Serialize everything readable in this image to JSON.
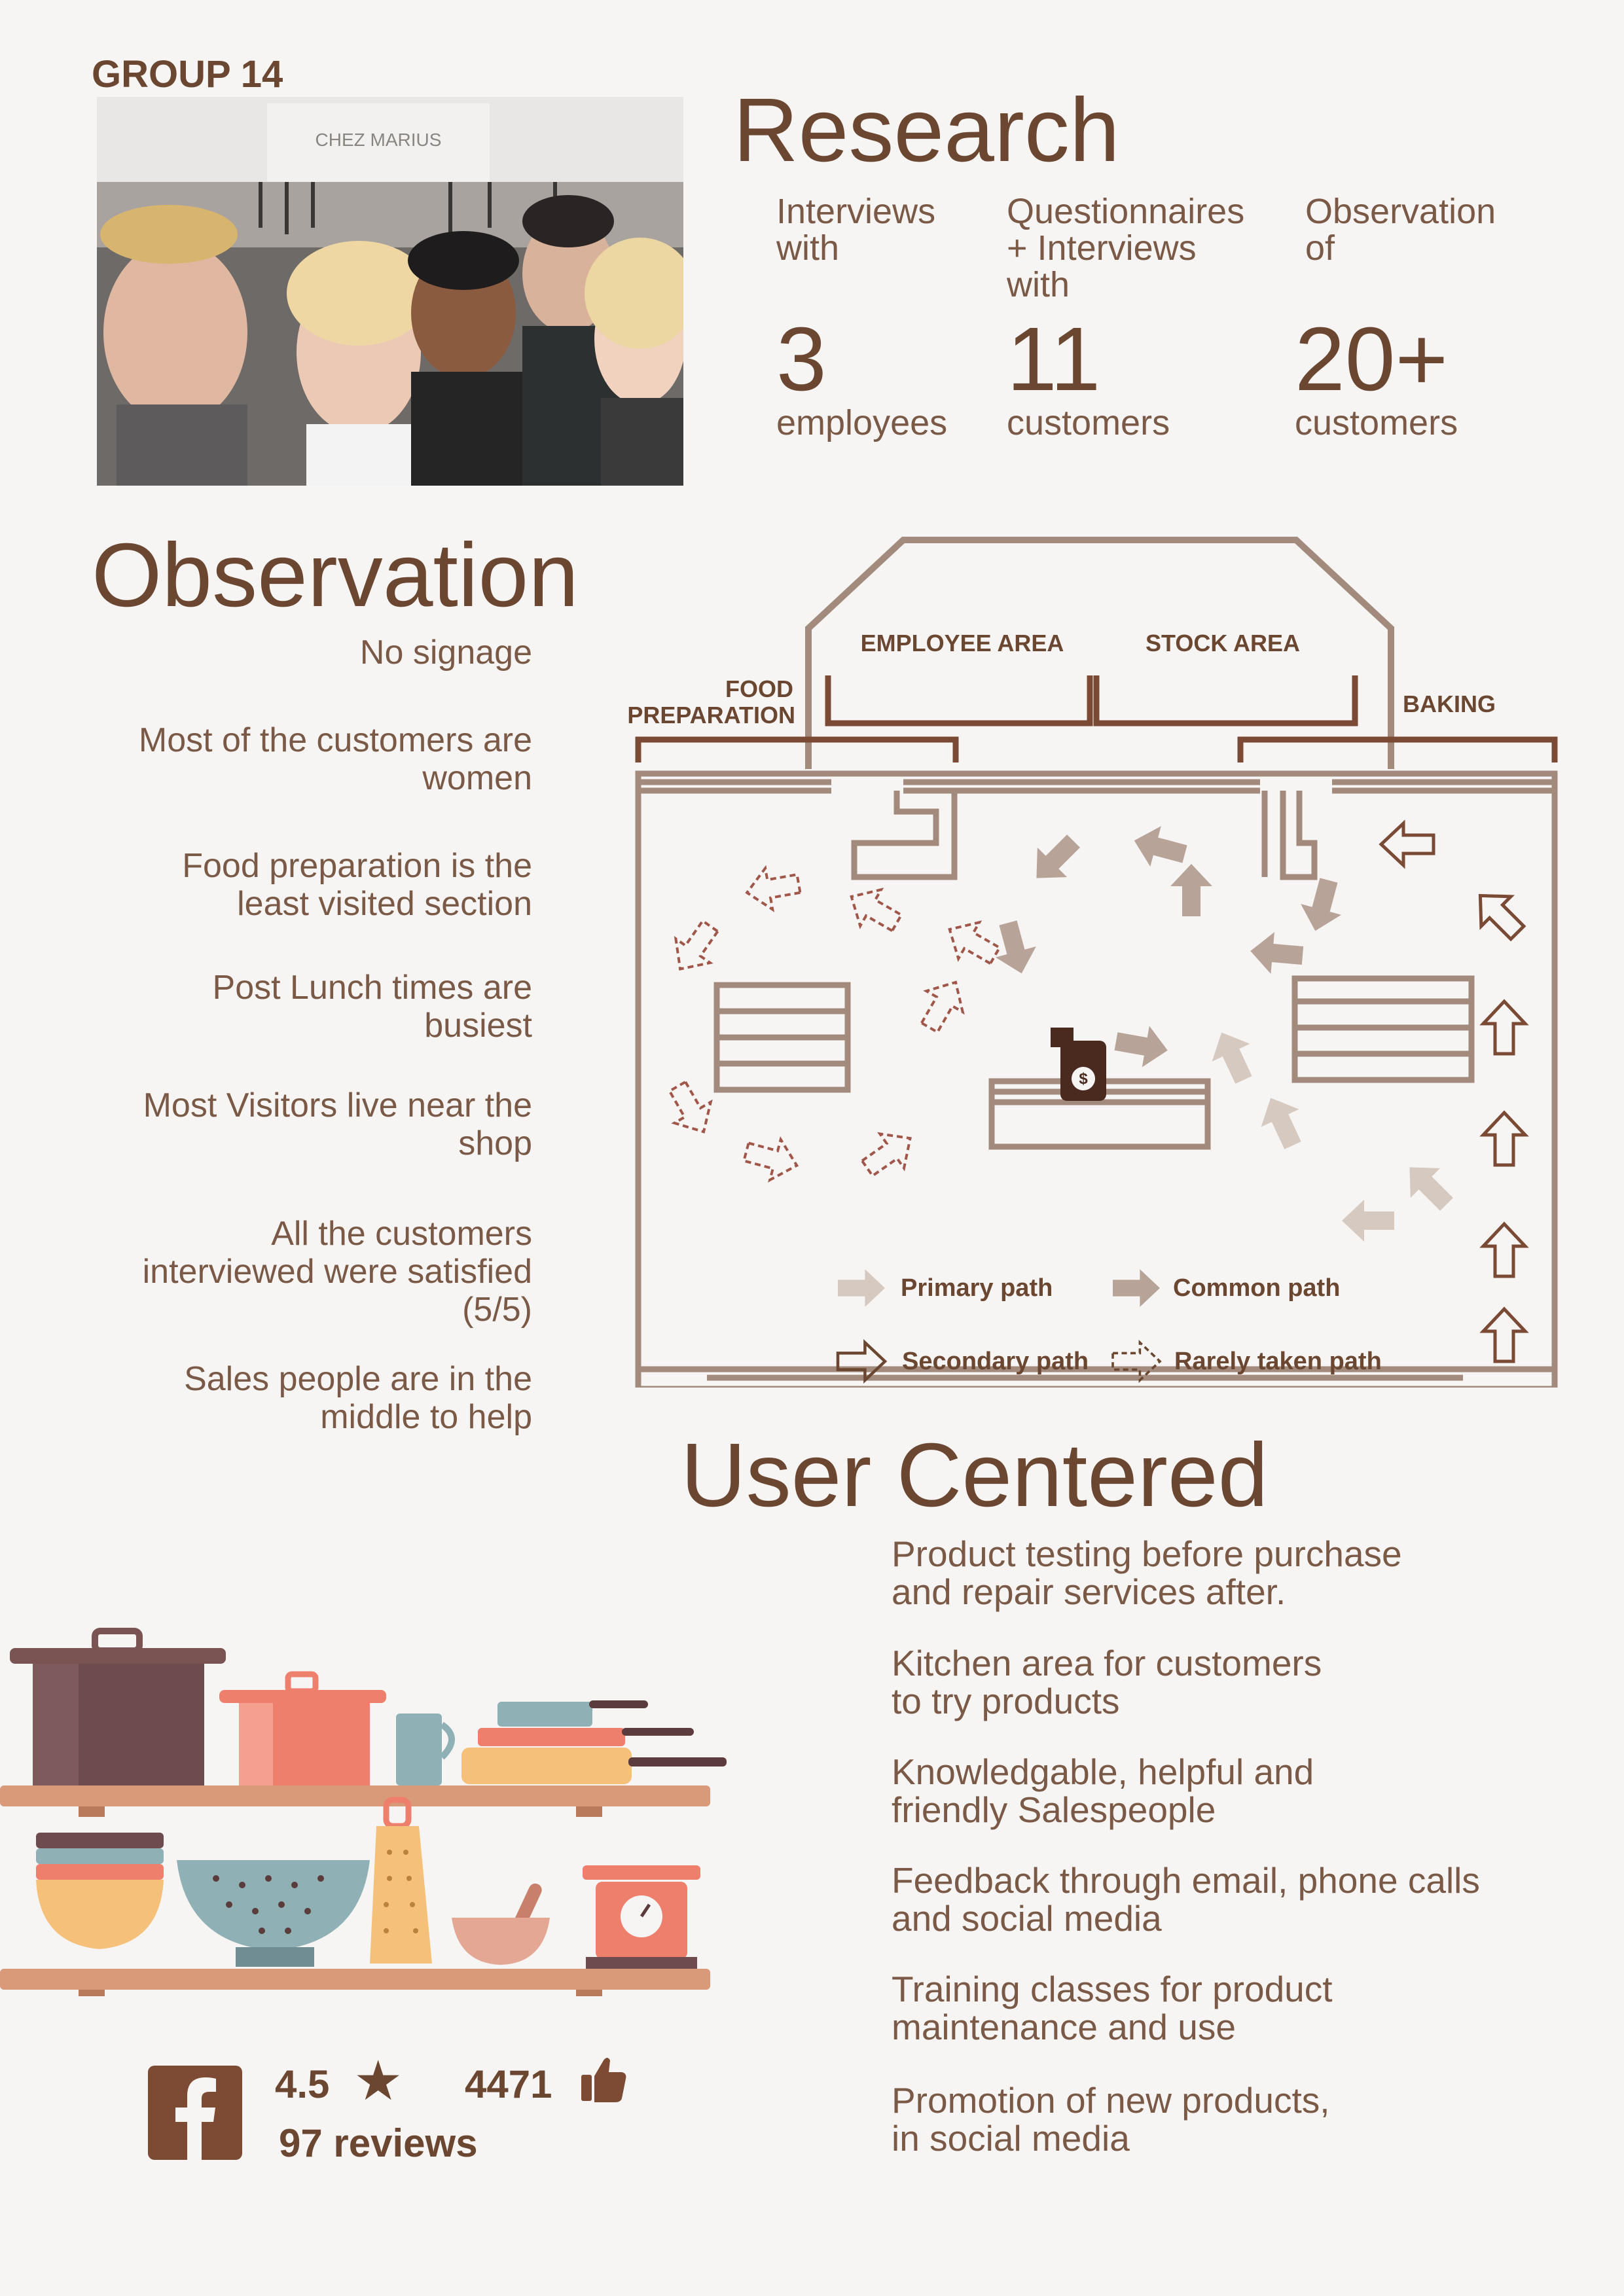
{
  "group": "GROUP 14",
  "photo": {
    "sign_text": "CHEZ MARIUS"
  },
  "research": {
    "title": "Research",
    "stats": [
      {
        "label": "Interviews\nwith",
        "number": "3",
        "unit": "employees"
      },
      {
        "label": "Questionnaires\n+ Interviews\nwith",
        "number": "11",
        "unit": "customers"
      },
      {
        "label": "Observation\nof",
        "number": "20+",
        "unit": "customers"
      }
    ]
  },
  "observation": {
    "title": "Observation",
    "items": [
      "No signage",
      "Most of the customers are\nwomen",
      "Food preparation is the\nleast visited section",
      "Post Lunch times are\nbusiest",
      "Most Visitors live near the\nshop",
      "All the customers\ninterviewed were satisfied\n(5/5)",
      "Sales people are in the\nmiddle to help"
    ]
  },
  "floorplan": {
    "employee_area": "EMPLOYEE AREA",
    "stock_area": "STOCK AREA",
    "food_preparation_1": "FOOD",
    "food_preparation_2": "PREPARATION",
    "baking": "BAKING"
  },
  "legend": {
    "primary": "Primary path",
    "common": "Common path",
    "secondary": "Secondary path",
    "rarely": "Rarely taken path"
  },
  "user_centered": {
    "title": "User Centered",
    "items": [
      "Product testing before purchase\nand repair services after.",
      "Kitchen area for customers\nto try products",
      "Knowledgable, helpful and\nfriendly Salespeople",
      "Feedback through email, phone calls\nand social media",
      "Training classes for product\nmaintenance and use",
      "Promotion of new products,\nin social media"
    ]
  },
  "facebook": {
    "rating": "4.5",
    "reviews": "97 reviews",
    "likes": "4471"
  },
  "colors": {
    "dark_brown": "#6b4731",
    "plan_line": "#a28b7c",
    "primary_path": "#d6c9c0",
    "background": "#f6f5f4"
  }
}
